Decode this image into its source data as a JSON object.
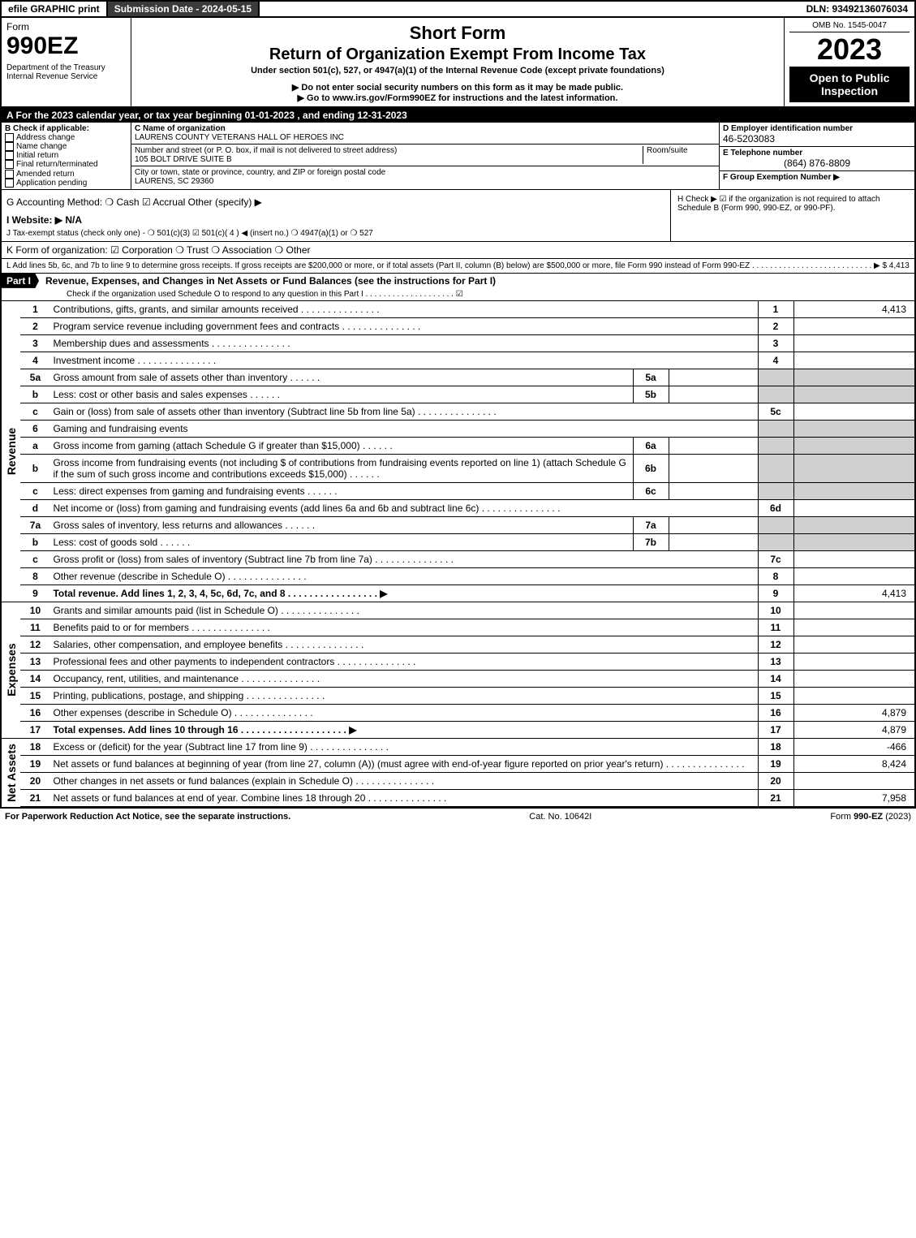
{
  "topbar": {
    "efile": "efile GRAPHIC print",
    "submission": "Submission Date - 2024-05-15",
    "dln": "DLN: 93492136076034"
  },
  "header": {
    "form_word": "Form",
    "form_no": "990EZ",
    "dept1": "Department of the Treasury",
    "dept2": "Internal Revenue Service",
    "short_form": "Short Form",
    "title": "Return of Organization Exempt From Income Tax",
    "subtitle": "Under section 501(c), 527, or 4947(a)(1) of the Internal Revenue Code (except private foundations)",
    "warn": "▶ Do not enter social security numbers on this form as it may be made public.",
    "goto": "▶ Go to www.irs.gov/Form990EZ for instructions and the latest information.",
    "omb": "OMB No. 1545-0047",
    "year": "2023",
    "open": "Open to Public Inspection"
  },
  "A": "A  For the 2023 calendar year, or tax year beginning 01-01-2023 , and ending 12-31-2023",
  "B": {
    "label": "B  Check if applicable:",
    "opts": [
      "Address change",
      "Name change",
      "Initial return",
      "Final return/terminated",
      "Amended return",
      "Application pending"
    ]
  },
  "C": {
    "label": "C Name of organization",
    "name": "LAURENS COUNTY VETERANS HALL OF HEROES INC",
    "street_label": "Number and street (or P. O. box, if mail is not delivered to street address)",
    "room_label": "Room/suite",
    "street": "105 BOLT DRIVE SUITE B",
    "city_label": "City or town, state or province, country, and ZIP or foreign postal code",
    "city": "LAURENS, SC  29360"
  },
  "D": {
    "label": "D Employer identification number",
    "val": "46-5203083"
  },
  "E": {
    "label": "E Telephone number",
    "val": "(864) 876-8809"
  },
  "F": {
    "label": "F Group Exemption Number  ▶"
  },
  "G": "G Accounting Method:   ❍ Cash   ☑ Accrual   Other (specify) ▶",
  "H": "H   Check ▶ ☑ if the organization is not required to attach Schedule B (Form 990, 990-EZ, or 990-PF).",
  "I": "I Website: ▶ N/A",
  "J": "J Tax-exempt status (check only one) - ❍ 501(c)(3)  ☑ 501(c)( 4 ) ◀ (insert no.)  ❍ 4947(a)(1) or  ❍ 527",
  "K": "K Form of organization:   ☑ Corporation   ❍ Trust   ❍ Association   ❍ Other",
  "L": "L Add lines 5b, 6c, and 7b to line 9 to determine gross receipts. If gross receipts are $200,000 or more, or if total assets (Part II, column (B) below) are $500,000 or more, file Form 990 instead of Form 990-EZ .  .  .  .  .  .  .  .  .  .  .  .  .  .  .  .  .  .  .  .  .  .  .  .  .  .  .  ▶ $ 4,413",
  "part1": {
    "label": "Part I",
    "title": "Revenue, Expenses, and Changes in Net Assets or Fund Balances (see the instructions for Part I)",
    "check": "Check if the organization used Schedule O to respond to any question in this Part I .  .  .  .  .  .  .  .  .  .  .  .  .  .  .  .  .  .  .  . ☑"
  },
  "side": {
    "rev": "Revenue",
    "exp": "Expenses",
    "na": "Net Assets"
  },
  "lines": {
    "1": {
      "n": "1",
      "t": "Contributions, gifts, grants, and similar amounts received",
      "box": "1",
      "amt": "4,413"
    },
    "2": {
      "n": "2",
      "t": "Program service revenue including government fees and contracts",
      "box": "2",
      "amt": ""
    },
    "3": {
      "n": "3",
      "t": "Membership dues and assessments",
      "box": "3",
      "amt": ""
    },
    "4": {
      "n": "4",
      "t": "Investment income",
      "box": "4",
      "amt": ""
    },
    "5a": {
      "n": "5a",
      "t": "Gross amount from sale of assets other than inventory",
      "sub": "5a"
    },
    "5b": {
      "n": "b",
      "t": "Less: cost or other basis and sales expenses",
      "sub": "5b"
    },
    "5c": {
      "n": "c",
      "t": "Gain or (loss) from sale of assets other than inventory (Subtract line 5b from line 5a)",
      "box": "5c",
      "amt": ""
    },
    "6": {
      "n": "6",
      "t": "Gaming and fundraising events"
    },
    "6a": {
      "n": "a",
      "t": "Gross income from gaming (attach Schedule G if greater than $15,000)",
      "sub": "6a"
    },
    "6b": {
      "n": "b",
      "t": "Gross income from fundraising events (not including $                     of contributions from fundraising events reported on line 1) (attach Schedule G if the sum of such gross income and contributions exceeds $15,000)",
      "sub": "6b"
    },
    "6c": {
      "n": "c",
      "t": "Less: direct expenses from gaming and fundraising events",
      "sub": "6c"
    },
    "6d": {
      "n": "d",
      "t": "Net income or (loss) from gaming and fundraising events (add lines 6a and 6b and subtract line 6c)",
      "box": "6d",
      "amt": ""
    },
    "7a": {
      "n": "7a",
      "t": "Gross sales of inventory, less returns and allowances",
      "sub": "7a"
    },
    "7b": {
      "n": "b",
      "t": "Less: cost of goods sold",
      "sub": "7b"
    },
    "7c": {
      "n": "c",
      "t": "Gross profit or (loss) from sales of inventory (Subtract line 7b from line 7a)",
      "box": "7c",
      "amt": ""
    },
    "8": {
      "n": "8",
      "t": "Other revenue (describe in Schedule O)",
      "box": "8",
      "amt": ""
    },
    "9": {
      "n": "9",
      "t": "Total revenue. Add lines 1, 2, 3, 4, 5c, 6d, 7c, and 8   .  .  .  .  .  .  .  .  .  .  .  .  .  .  .  .  . ▶",
      "box": "9",
      "amt": "4,413",
      "bold": true
    },
    "10": {
      "n": "10",
      "t": "Grants and similar amounts paid (list in Schedule O)",
      "box": "10",
      "amt": ""
    },
    "11": {
      "n": "11",
      "t": "Benefits paid to or for members",
      "box": "11",
      "amt": ""
    },
    "12": {
      "n": "12",
      "t": "Salaries, other compensation, and employee benefits",
      "box": "12",
      "amt": ""
    },
    "13": {
      "n": "13",
      "t": "Professional fees and other payments to independent contractors",
      "box": "13",
      "amt": ""
    },
    "14": {
      "n": "14",
      "t": "Occupancy, rent, utilities, and maintenance",
      "box": "14",
      "amt": ""
    },
    "15": {
      "n": "15",
      "t": "Printing, publications, postage, and shipping",
      "box": "15",
      "amt": ""
    },
    "16": {
      "n": "16",
      "t": "Other expenses (describe in Schedule O)",
      "box": "16",
      "amt": "4,879"
    },
    "17": {
      "n": "17",
      "t": "Total expenses. Add lines 10 through 16   .  .  .  .  .  .  .  .  .  .  .  .  .  .  .  .  .  .  .  . ▶",
      "box": "17",
      "amt": "4,879",
      "bold": true
    },
    "18": {
      "n": "18",
      "t": "Excess or (deficit) for the year (Subtract line 17 from line 9)",
      "box": "18",
      "amt": "-466"
    },
    "19": {
      "n": "19",
      "t": "Net assets or fund balances at beginning of year (from line 27, column (A)) (must agree with end-of-year figure reported on prior year's return)",
      "box": "19",
      "amt": "8,424"
    },
    "20": {
      "n": "20",
      "t": "Other changes in net assets or fund balances (explain in Schedule O)",
      "box": "20",
      "amt": ""
    },
    "21": {
      "n": "21",
      "t": "Net assets or fund balances at end of year. Combine lines 18 through 20",
      "box": "21",
      "amt": "7,958"
    }
  },
  "footer": {
    "left": "For Paperwork Reduction Act Notice, see the separate instructions.",
    "mid": "Cat. No. 10642I",
    "right": "Form 990-EZ (2023)"
  }
}
